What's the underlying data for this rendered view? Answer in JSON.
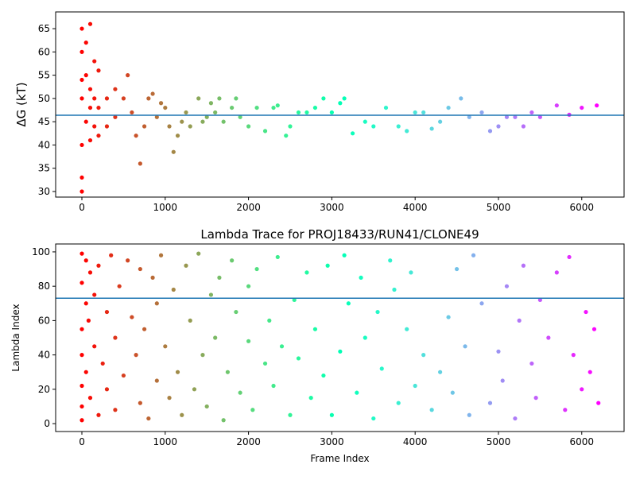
{
  "chart_data": [
    {
      "type": "scatter",
      "ylabel": "ΔG (kT)",
      "colormap": "rainbow_r",
      "hline": 46.4,
      "hline_color": "#1f77b4",
      "xlim": [
        -315,
        6508
      ],
      "xticks": [
        0,
        1000,
        2000,
        3000,
        4000,
        5000,
        6000
      ],
      "ylim": [
        28.8,
        68.6
      ],
      "yticks": [
        30,
        35,
        40,
        45,
        50,
        55,
        60,
        65
      ],
      "x": [
        0,
        0,
        0,
        0,
        0,
        0,
        0,
        50,
        50,
        50,
        100,
        100,
        100,
        100,
        150,
        150,
        150,
        200,
        200,
        200,
        300,
        300,
        400,
        400,
        500,
        550,
        600,
        650,
        700,
        750,
        800,
        850,
        900,
        950,
        1000,
        1050,
        1100,
        1150,
        1200,
        1250,
        1300,
        1400,
        1450,
        1500,
        1550,
        1600,
        1650,
        1700,
        1800,
        1850,
        1900,
        2000,
        2100,
        2200,
        2300,
        2350,
        2450,
        2500,
        2600,
        2700,
        2800,
        2900,
        3000,
        3100,
        3150,
        3250,
        3400,
        3500,
        3650,
        3800,
        3900,
        4000,
        4100,
        4200,
        4300,
        4400,
        4550,
        4650,
        4800,
        4900,
        5000,
        5100,
        5200,
        5300,
        5400,
        5500,
        5700,
        5850,
        6000,
        6180
      ],
      "values": [
        30,
        33,
        40,
        50,
        54,
        60,
        65,
        45,
        55,
        62,
        41,
        48,
        52,
        66,
        44,
        50,
        58,
        42,
        48,
        56,
        44,
        50,
        46,
        52,
        50,
        55,
        47,
        42,
        36,
        44,
        50,
        51,
        46,
        49,
        48,
        44,
        38.5,
        42,
        45,
        47,
        44,
        50,
        45,
        46,
        49,
        47,
        50,
        45,
        48,
        50,
        46,
        44,
        48,
        43,
        48,
        48.5,
        42,
        44,
        47,
        47,
        48,
        50,
        47,
        49,
        50,
        42.5,
        45,
        44,
        48,
        44,
        43,
        47,
        47,
        43.5,
        45,
        48,
        50,
        46,
        47,
        43,
        44,
        46,
        46,
        44,
        47,
        46,
        48.5,
        46.5,
        48,
        48.5
      ]
    },
    {
      "type": "scatter",
      "title": "Lambda Trace for PROJ18433/RUN41/CLONE49",
      "xlabel": "Frame Index",
      "ylabel": "Lambda Index",
      "colormap": "rainbow_r",
      "hline": 73,
      "hline_color": "#1f77b4",
      "xlim": [
        -315,
        6508
      ],
      "xticks": [
        0,
        1000,
        2000,
        3000,
        4000,
        5000,
        6000
      ],
      "ylim": [
        -4.6,
        104.6
      ],
      "yticks": [
        0,
        20,
        40,
        60,
        80,
        100
      ],
      "x": [
        0,
        0,
        0,
        0,
        0,
        0,
        0,
        50,
        50,
        50,
        80,
        100,
        100,
        150,
        150,
        200,
        200,
        250,
        300,
        300,
        350,
        400,
        400,
        450,
        500,
        550,
        600,
        650,
        700,
        700,
        750,
        800,
        850,
        900,
        900,
        950,
        1000,
        1050,
        1100,
        1150,
        1200,
        1250,
        1300,
        1350,
        1400,
        1450,
        1500,
        1550,
        1600,
        1650,
        1700,
        1750,
        1800,
        1850,
        1900,
        2000,
        2000,
        2050,
        2100,
        2200,
        2250,
        2300,
        2350,
        2400,
        2500,
        2550,
        2600,
        2700,
        2750,
        2800,
        2900,
        2950,
        3000,
        3100,
        3150,
        3200,
        3300,
        3350,
        3400,
        3500,
        3550,
        3600,
        3700,
        3750,
        3800,
        3900,
        3950,
        4000,
        4100,
        4200,
        4300,
        4400,
        4450,
        4500,
        4600,
        4650,
        4700,
        4800,
        4900,
        5000,
        5050,
        5100,
        5200,
        5250,
        5300,
        5400,
        5450,
        5500,
        5600,
        5700,
        5800,
        5850,
        5900,
        6000,
        6050,
        6100,
        6150,
        6200
      ],
      "values": [
        99,
        82,
        55,
        40,
        22,
        10,
        2,
        95,
        70,
        30,
        60,
        88,
        15,
        45,
        75,
        5,
        92,
        35,
        65,
        20,
        98,
        50,
        8,
        80,
        28,
        95,
        62,
        40,
        12,
        90,
        55,
        3,
        85,
        25,
        70,
        98,
        45,
        15,
        78,
        30,
        5,
        92,
        60,
        20,
        99,
        40,
        10,
        75,
        50,
        85,
        2,
        30,
        95,
        65,
        18,
        48,
        80,
        8,
        90,
        35,
        60,
        22,
        97,
        45,
        5,
        72,
        38,
        88,
        15,
        55,
        28,
        92,
        5,
        42,
        98,
        70,
        18,
        85,
        50,
        3,
        65,
        32,
        95,
        78,
        12,
        55,
        88,
        22,
        40,
        8,
        30,
        62,
        18,
        90,
        45,
        5,
        98,
        70,
        12,
        42,
        25,
        80,
        3,
        60,
        92,
        35,
        15,
        72,
        50,
        88,
        8,
        97,
        40,
        20,
        65,
        30,
        55,
        12
      ]
    }
  ]
}
